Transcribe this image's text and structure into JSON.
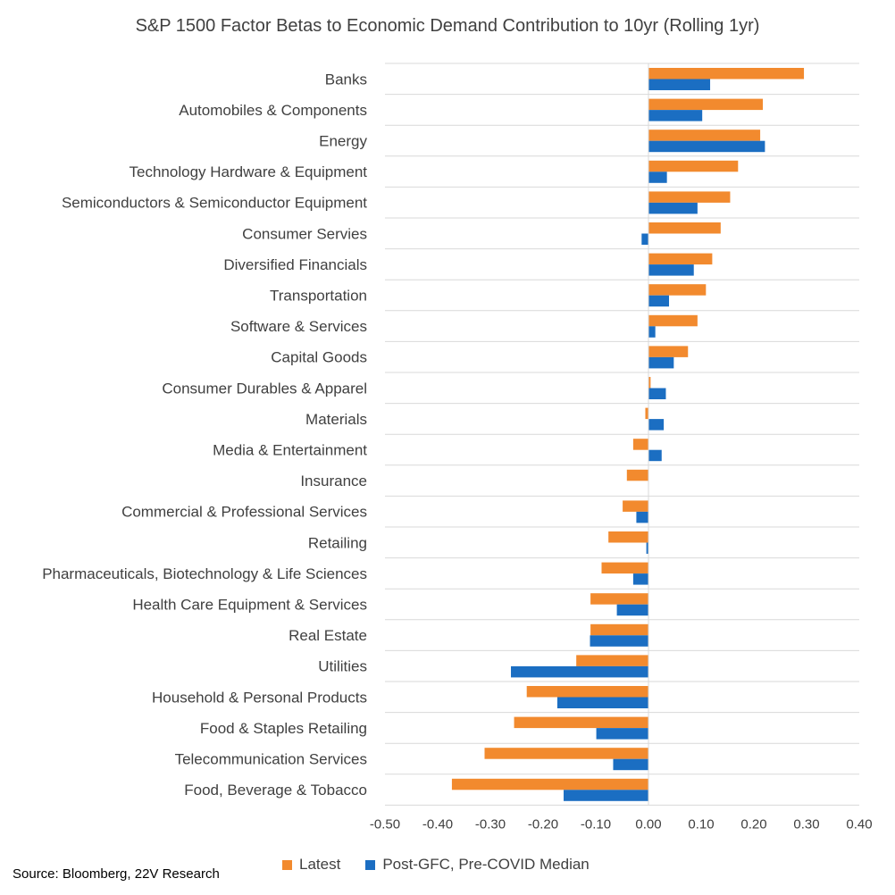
{
  "chart_data": {
    "type": "bar",
    "orientation": "horizontal",
    "title": "S&P 1500 Factor Betas to Economic Demand Contribution to 10yr (Rolling 1yr)",
    "categories": [
      "Banks",
      "Automobiles & Components",
      "Energy",
      "Technology Hardware & Equipment",
      "Semiconductors & Semiconductor Equipment",
      "Consumer Servies",
      "Diversified Financials",
      "Transportation",
      "Software & Services",
      "Capital Goods",
      "Consumer Durables & Apparel",
      "Materials",
      "Media & Entertainment",
      "Insurance",
      "Commercial & Professional Services",
      "Retailing",
      "Pharmaceuticals, Biotechnology & Life Sciences",
      "Health Care Equipment & Services",
      "Real Estate",
      "Utilities",
      "Household & Personal Products",
      "Food & Staples Retailing",
      "Telecommunication Services",
      "Food, Beverage & Tobacco"
    ],
    "series": [
      {
        "name": "Latest",
        "color": "#F28A2E",
        "values": [
          0.295,
          0.217,
          0.212,
          0.17,
          0.155,
          0.137,
          0.121,
          0.109,
          0.093,
          0.075,
          0.004,
          -0.006,
          -0.029,
          -0.041,
          -0.049,
          -0.076,
          -0.089,
          -0.11,
          -0.11,
          -0.137,
          -0.231,
          -0.255,
          -0.311,
          -0.373
        ]
      },
      {
        "name": "Post-GFC, Pre-COVID Median",
        "color": "#1B6EC2",
        "values": [
          0.117,
          0.102,
          0.221,
          0.035,
          0.093,
          -0.013,
          0.086,
          0.039,
          0.013,
          0.048,
          0.033,
          0.029,
          0.025,
          0.0,
          -0.023,
          -0.004,
          -0.029,
          -0.06,
          -0.111,
          -0.261,
          -0.173,
          -0.099,
          -0.067,
          -0.161
        ]
      }
    ],
    "xlim": [
      -0.5,
      0.4
    ],
    "xticks": [
      "-0.50",
      "-0.40",
      "-0.30",
      "-0.20",
      "-0.10",
      "0.00",
      "0.10",
      "0.20",
      "0.30",
      "0.40"
    ],
    "xtick_values": [
      -0.5,
      -0.4,
      -0.3,
      -0.2,
      -0.1,
      0.0,
      0.1,
      0.2,
      0.3,
      0.4
    ],
    "grid": "horizontal",
    "legend_placement": "bottom"
  },
  "source": "Source: Bloomberg, 22V Research"
}
